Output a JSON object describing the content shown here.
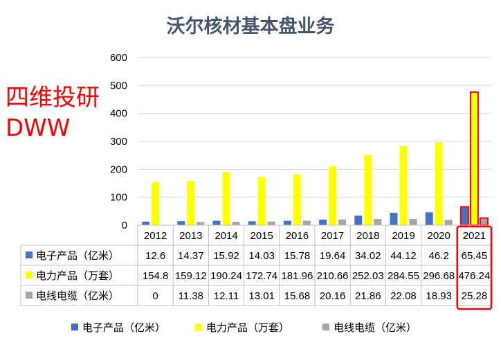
{
  "chart_data": {
    "type": "bar",
    "title": "沃尔核材基本盘业务",
    "categories": [
      "2012",
      "2013",
      "2014",
      "2015",
      "2016",
      "2017",
      "2018",
      "2019",
      "2020",
      "2021"
    ],
    "series": [
      {
        "name": "电子产品（亿米）",
        "color": "#4472c4",
        "values": [
          12.6,
          14.37,
          15.92,
          14.03,
          15.78,
          19.64,
          34.02,
          44.12,
          46.2,
          65.45
        ],
        "labels": [
          "12.6",
          "14.37",
          "15.92",
          "14.03",
          "15.78",
          "19.64",
          "34.02",
          "44.12",
          "46.2",
          "65.45"
        ]
      },
      {
        "name": "电力产品（万套）",
        "color": "#ffff00",
        "values": [
          154.8,
          159.12,
          190.24,
          172.74,
          181.96,
          210.66,
          252.03,
          284.55,
          296.68,
          476.24
        ],
        "labels": [
          "154.8",
          "159.12",
          "190.24",
          "172.74",
          "181.96",
          "210.66",
          "252.03",
          "284.55",
          "296.68",
          "476.24"
        ]
      },
      {
        "name": "电线电缆（亿米）",
        "color": "#a5a5a5",
        "values": [
          0,
          11.38,
          12.11,
          13.01,
          15.68,
          20.16,
          21.86,
          22.08,
          18.93,
          25.28
        ],
        "labels": [
          "0",
          "11.38",
          "12.11",
          "13.01",
          "15.68",
          "20.16",
          "21.86",
          "22.08",
          "18.93",
          "25.28"
        ]
      }
    ],
    "ylim": [
      0,
      600
    ],
    "yticks": [
      "0",
      "100",
      "200",
      "300",
      "400",
      "500",
      "600"
    ],
    "grid": true,
    "legend": "bottom",
    "data_table": true,
    "highlight_category": "2021",
    "highlight_color": "#ff0000"
  },
  "watermark": {
    "line1": "四维投研",
    "line2": "DWW"
  }
}
